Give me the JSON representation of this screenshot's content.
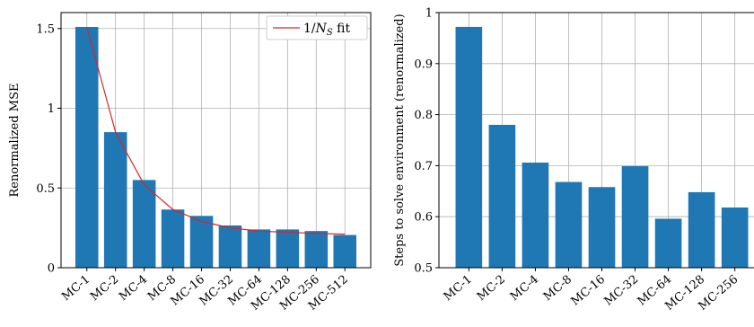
{
  "chart_data": [
    {
      "type": "bar",
      "categories": [
        "MC-1",
        "MC-2",
        "MC-4",
        "MC-8",
        "MC-16",
        "MC-32",
        "MC-64",
        "MC-128",
        "MC-256",
        "MC-512"
      ],
      "values": [
        1.51,
        0.85,
        0.55,
        0.365,
        0.325,
        0.265,
        0.24,
        0.24,
        0.23,
        0.205
      ],
      "ylabel": "Renormalized MSE",
      "xlabel": "",
      "ylim": [
        0,
        1.6
      ],
      "yticks": [
        "0",
        "0.5",
        "1",
        "1.5"
      ],
      "grid": true,
      "bar_color": "#1f77b4",
      "fit": {
        "name": "1/N_S fit",
        "color": "#d62728",
        "values": [
          1.51,
          0.85,
          0.52,
          0.365,
          0.29,
          0.25,
          0.23,
          0.222,
          0.215,
          0.21
        ]
      },
      "legend": {
        "position": "top-right",
        "label_text": "1/",
        "label_var": "N",
        "label_sub": "S",
        "label_suffix": " fit"
      }
    },
    {
      "type": "bar",
      "categories": [
        "MC-1",
        "MC-2",
        "MC-4",
        "MC-8",
        "MC-16",
        "MC-32",
        "MC-64",
        "MC-128",
        "MC-256"
      ],
      "values": [
        0.972,
        0.78,
        0.706,
        0.668,
        0.658,
        0.699,
        0.596,
        0.648,
        0.618
      ],
      "ylabel": "Steps to solve environment (renormalized)",
      "xlabel": "",
      "ylim": [
        0.5,
        1.0
      ],
      "yticks": [
        "0.5",
        "0.6",
        "0.7",
        "0.8",
        "0.9",
        "1"
      ],
      "grid": true,
      "bar_color": "#1f77b4"
    }
  ]
}
